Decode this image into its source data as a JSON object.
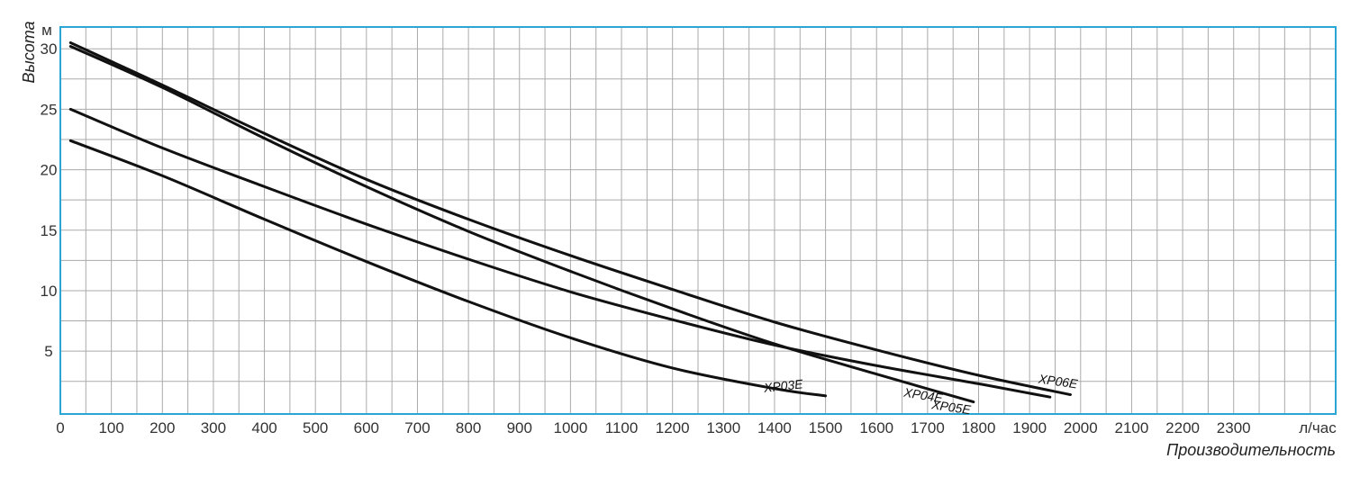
{
  "chart_data": {
    "type": "line",
    "xlabel": "Производительность",
    "ylabel": "Высота",
    "x_unit": "л/час",
    "y_unit": "м",
    "xlim": [
      0,
      2500
    ],
    "ylim": [
      -0.2,
      31.8
    ],
    "x_ticks": [
      0,
      100,
      200,
      300,
      400,
      500,
      600,
      700,
      800,
      900,
      1000,
      1100,
      1200,
      1300,
      1400,
      1500,
      1600,
      1700,
      1800,
      1900,
      2000,
      2100,
      2200,
      2300
    ],
    "y_ticks": [
      5,
      10,
      15,
      20,
      25,
      30
    ],
    "grid": true,
    "colors": {
      "frame": "#2aa6d5",
      "grid": "#aaaaaa",
      "line": "#111111"
    },
    "series": [
      {
        "name": "XP03E",
        "x": [
          20,
          200,
          400,
          600,
          800,
          1000,
          1200,
          1400,
          1500
        ],
        "y": [
          22.4,
          19.5,
          15.9,
          12.4,
          9.1,
          6.1,
          3.6,
          1.9,
          1.3
        ]
      },
      {
        "name": "XP04E",
        "x": [
          20,
          200,
          400,
          600,
          800,
          1000,
          1200,
          1400,
          1600,
          1790
        ],
        "y": [
          30.2,
          26.8,
          22.6,
          18.6,
          14.9,
          11.6,
          8.5,
          5.6,
          3.1,
          0.8
        ]
      },
      {
        "name": "XP05E",
        "x": [
          20,
          200,
          400,
          600,
          800,
          1000,
          1200,
          1400,
          1600,
          1800,
          1940
        ],
        "y": [
          25.0,
          21.8,
          18.6,
          15.5,
          12.6,
          9.9,
          7.6,
          5.5,
          3.8,
          2.3,
          1.2
        ]
      },
      {
        "name": "XP06E",
        "x": [
          20,
          200,
          400,
          600,
          800,
          1000,
          1200,
          1400,
          1600,
          1800,
          1980
        ],
        "y": [
          30.5,
          27.0,
          23.0,
          19.2,
          15.9,
          12.9,
          10.1,
          7.4,
          5.1,
          3.0,
          1.4
        ]
      }
    ]
  }
}
